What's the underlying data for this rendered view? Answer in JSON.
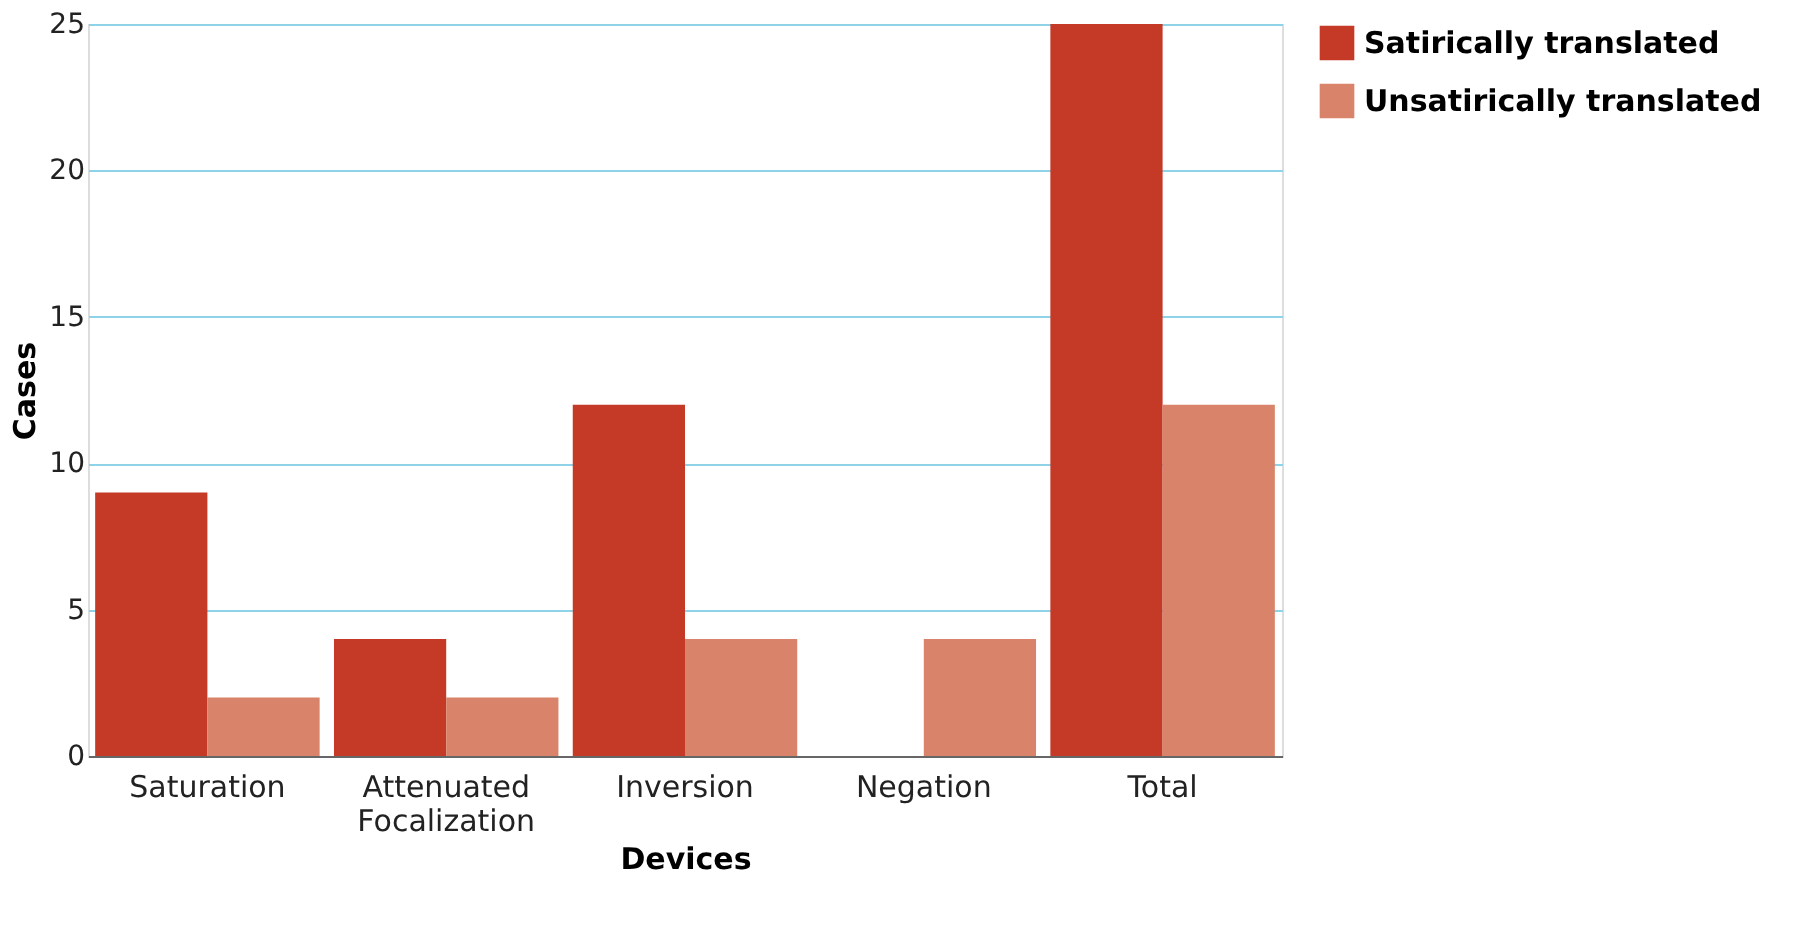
{
  "chart_data": {
    "type": "bar",
    "xlabel": "Devices",
    "ylabel": "Cases",
    "categories": [
      "Saturation",
      "Attenuated Focalization",
      "Inversion",
      "Negation",
      "Total"
    ],
    "series": [
      {
        "name": "Satirically translated",
        "color": "#c43a26",
        "values": [
          9,
          4,
          12,
          0,
          25
        ]
      },
      {
        "name": "Unsatirically translated",
        "color": "#d9836a",
        "values": [
          2,
          2,
          4,
          4,
          12
        ]
      }
    ],
    "ylim": [
      0,
      25
    ],
    "yticks": [
      0,
      5,
      10,
      15,
      20,
      25
    ],
    "grid": "y",
    "legend": "top right"
  }
}
